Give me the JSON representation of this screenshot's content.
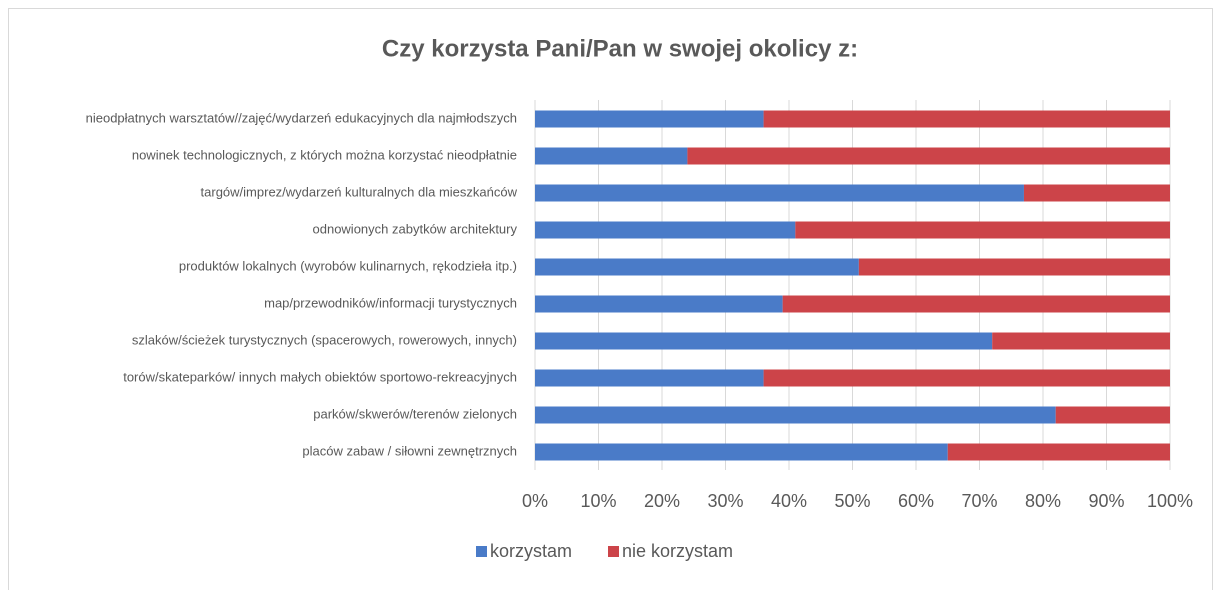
{
  "chart_data": {
    "type": "stacked_bar_horizontal",
    "title": "Czy korzysta Pani/Pan w swojej okolicy z:",
    "categories": [
      "nieodpłatnych warsztatów//zajęć/wydarzeń edukacyjnych dla najmłodszych",
      "nowinek technologicznych, z których można korzystać nieodpłatnie",
      "targów/imprez/wydarzeń kulturalnych dla mieszkańców",
      "odnowionych zabytków architektury",
      "produktów lokalnych (wyrobów kulinarnych, rękodzieła itp.)",
      "map/przewodników/informacji turystycznych",
      "szlaków/ścieżek turystycznych (spacerowych, rowerowych, innych)",
      "torów/skateparków/ innych małych obiektów sportowo-rekreacyjnych",
      "parków/skwerów/terenów zielonych",
      "placów zabaw / siłowni zewnętrznych"
    ],
    "series": [
      {
        "name": "korzystam",
        "color": "#4a7bc8",
        "values": [
          36,
          24,
          77,
          41,
          51,
          39,
          72,
          36,
          82,
          65
        ]
      },
      {
        "name": "nie korzystam",
        "color": "#cc4449",
        "values": [
          64,
          76,
          23,
          59,
          49,
          61,
          28,
          64,
          18,
          35
        ]
      }
    ],
    "xlim": [
      0,
      100
    ],
    "xticks": [
      {
        "value": 0,
        "label": "0%"
      },
      {
        "value": 10,
        "label": "10%"
      },
      {
        "value": 20,
        "label": "20%"
      },
      {
        "value": 30,
        "label": "30%"
      },
      {
        "value": 40,
        "label": "40%"
      },
      {
        "value": 50,
        "label": "50%"
      },
      {
        "value": 60,
        "label": "60%"
      },
      {
        "value": 70,
        "label": "70%"
      },
      {
        "value": 80,
        "label": "80%"
      },
      {
        "value": 90,
        "label": "90%"
      },
      {
        "value": 100,
        "label": "100%"
      }
    ],
    "grid": true,
    "legend": "bottom"
  }
}
